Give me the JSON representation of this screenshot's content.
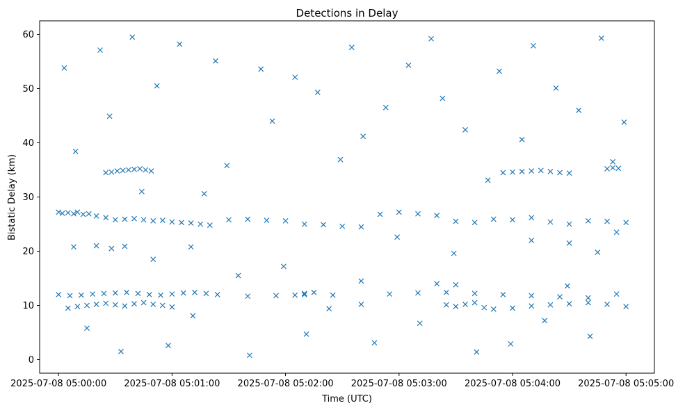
{
  "chart_data": {
    "type": "scatter",
    "title": "Detections in Delay",
    "xlabel": "Time (UTC)",
    "ylabel": "Bistatic Delay (km)",
    "x_unit": "time",
    "xlim": [
      "2025-07-08 04:59:50",
      "2025-07-08 05:05:15"
    ],
    "ylim": [
      -2.5,
      62.5
    ],
    "x_ticks": [
      "2025-07-08 05:00:00",
      "2025-07-08 05:01:00",
      "2025-07-08 05:02:00",
      "2025-07-08 05:03:00",
      "2025-07-08 05:04:00",
      "2025-07-08 05:05:00"
    ],
    "y_ticks": [
      0,
      10,
      20,
      30,
      40,
      50,
      60
    ],
    "marker": "x",
    "color": "#1f77b4",
    "grid": false,
    "series": [
      {
        "name": "",
        "x": [
          "2025-07-08 05:00:00",
          "2025-07-08 05:00:02",
          "2025-07-08 05:00:05",
          "2025-07-08 05:00:08",
          "2025-07-08 05:00:10",
          "2025-07-08 05:00:13",
          "2025-07-08 05:00:16",
          "2025-07-08 05:00:20",
          "2025-07-08 05:00:25",
          "2025-07-08 05:00:30",
          "2025-07-08 05:00:35",
          "2025-07-08 05:00:40",
          "2025-07-08 05:00:45",
          "2025-07-08 05:00:50",
          "2025-07-08 05:00:55",
          "2025-07-08 05:01:00",
          "2025-07-08 05:01:05",
          "2025-07-08 05:01:10",
          "2025-07-08 05:01:15",
          "2025-07-08 05:01:20",
          "2025-07-08 05:01:30",
          "2025-07-08 05:01:40",
          "2025-07-08 05:01:50",
          "2025-07-08 05:02:00",
          "2025-07-08 05:02:10",
          "2025-07-08 05:02:20",
          "2025-07-08 05:02:30",
          "2025-07-08 05:02:40",
          "2025-07-08 05:02:50",
          "2025-07-08 05:03:00",
          "2025-07-08 05:03:10",
          "2025-07-08 05:03:20",
          "2025-07-08 05:03:30",
          "2025-07-08 05:03:40",
          "2025-07-08 05:03:50",
          "2025-07-08 05:04:00",
          "2025-07-08 05:04:10",
          "2025-07-08 05:04:20",
          "2025-07-08 05:04:30",
          "2025-07-08 05:04:40",
          "2025-07-08 05:04:50",
          "2025-07-08 05:05:00",
          "2025-07-08 05:00:00",
          "2025-07-08 05:00:06",
          "2025-07-08 05:00:12",
          "2025-07-08 05:00:18",
          "2025-07-08 05:00:24",
          "2025-07-08 05:00:30",
          "2025-07-08 05:00:36",
          "2025-07-08 05:00:42",
          "2025-07-08 05:00:48",
          "2025-07-08 05:00:54",
          "2025-07-08 05:01:00",
          "2025-07-08 05:01:06",
          "2025-07-08 05:01:12",
          "2025-07-08 05:01:18",
          "2025-07-08 05:01:24",
          "2025-07-08 05:01:40",
          "2025-07-08 05:01:55",
          "2025-07-08 05:02:10",
          "2025-07-08 05:02:25",
          "2025-07-08 05:02:40",
          "2025-07-08 05:02:55",
          "2025-07-08 05:03:10",
          "2025-07-08 05:03:25",
          "2025-07-08 05:03:40",
          "2025-07-08 05:03:55",
          "2025-07-08 05:04:10",
          "2025-07-08 05:04:25",
          "2025-07-08 05:04:40",
          "2025-07-08 05:04:55",
          "2025-07-08 05:00:25",
          "2025-07-08 05:00:28",
          "2025-07-08 05:00:31",
          "2025-07-08 05:00:34",
          "2025-07-08 05:00:37",
          "2025-07-08 05:00:40",
          "2025-07-08 05:00:43",
          "2025-07-08 05:00:46",
          "2025-07-08 05:00:49",
          "2025-07-08 05:03:55",
          "2025-07-08 05:04:00",
          "2025-07-08 05:04:05",
          "2025-07-08 05:04:10",
          "2025-07-08 05:04:15",
          "2025-07-08 05:04:20",
          "2025-07-08 05:04:25",
          "2025-07-08 05:04:30",
          "2025-07-08 05:04:50",
          "2025-07-08 05:04:53",
          "2025-07-08 05:04:56",
          "2025-07-08 05:00:05",
          "2025-07-08 05:00:10",
          "2025-07-08 05:00:15",
          "2025-07-08 05:00:20",
          "2025-07-08 05:00:25",
          "2025-07-08 05:00:30",
          "2025-07-08 05:00:35",
          "2025-07-08 05:00:40",
          "2025-07-08 05:00:45",
          "2025-07-08 05:00:50",
          "2025-07-08 05:00:55",
          "2025-07-08 05:01:00",
          "2025-07-08 05:01:10",
          "2025-07-08 05:02:05",
          "2025-07-08 05:02:10",
          "2025-07-08 05:02:15",
          "2025-07-08 05:03:25",
          "2025-07-08 05:03:30",
          "2025-07-08 05:03:35",
          "2025-07-08 05:03:40",
          "2025-07-08 05:03:45",
          "2025-07-08 05:03:50",
          "2025-07-08 05:04:00",
          "2025-07-08 05:04:10",
          "2025-07-08 05:04:20",
          "2025-07-08 05:04:30",
          "2025-07-08 05:04:40",
          "2025-07-08 05:04:50",
          "2025-07-08 05:05:00",
          "2025-07-08 05:00:08",
          "2025-07-08 05:00:20",
          "2025-07-08 05:00:28",
          "2025-07-08 05:00:35",
          "2025-07-08 05:00:50",
          "2025-07-08 05:02:40",
          "2025-07-08 05:03:20",
          "2025-07-08 05:03:30",
          "2025-07-08 05:04:10",
          "2025-07-08 05:04:30",
          "2025-07-08 05:04:45",
          "2025-07-08 05:04:55",
          "2025-07-08 05:00:03",
          "2025-07-08 05:00:09",
          "2025-07-08 05:00:15",
          "2025-07-08 05:00:22",
          "2025-07-08 05:00:27",
          "2025-07-08 05:00:33",
          "2025-07-08 05:00:39",
          "2025-07-08 05:00:44",
          "2025-07-08 05:00:52",
          "2025-07-08 05:00:58",
          "2025-07-08 05:01:04",
          "2025-07-08 05:01:11",
          "2025-07-08 05:01:17",
          "2025-07-08 05:01:23",
          "2025-07-08 05:01:29",
          "2025-07-08 05:01:35",
          "2025-07-08 05:01:41",
          "2025-07-08 05:01:47",
          "2025-07-08 05:01:53",
          "2025-07-08 05:01:59",
          "2025-07-08 05:02:05",
          "2025-07-08 05:02:11",
          "2025-07-08 05:02:17",
          "2025-07-08 05:02:23",
          "2025-07-08 05:02:29",
          "2025-07-08 05:02:35",
          "2025-07-08 05:02:41",
          "2025-07-08 05:02:47",
          "2025-07-08 05:02:53",
          "2025-07-08 05:02:59",
          "2025-07-08 05:03:05",
          "2025-07-08 05:03:11",
          "2025-07-08 05:03:17",
          "2025-07-08 05:03:23",
          "2025-07-08 05:03:29",
          "2025-07-08 05:03:35",
          "2025-07-08 05:03:41",
          "2025-07-08 05:03:47",
          "2025-07-08 05:03:53",
          "2025-07-08 05:03:59",
          "2025-07-08 05:04:05",
          "2025-07-08 05:04:11",
          "2025-07-08 05:04:17",
          "2025-07-08 05:04:23",
          "2025-07-08 05:04:29",
          "2025-07-08 05:04:35",
          "2025-07-08 05:04:41",
          "2025-07-08 05:04:47",
          "2025-07-08 05:04:53",
          "2025-07-08 05:04:59"
        ],
        "y": [
          27.2,
          27.0,
          27.1,
          26.9,
          27.2,
          26.8,
          26.9,
          26.5,
          26.2,
          25.8,
          25.9,
          26.0,
          25.8,
          25.6,
          25.7,
          25.4,
          25.3,
          25.2,
          25.0,
          24.8,
          25.8,
          25.9,
          25.7,
          25.6,
          25.0,
          24.9,
          24.6,
          24.5,
          26.8,
          27.2,
          26.9,
          26.6,
          25.5,
          25.3,
          25.9,
          25.8,
          26.2,
          25.4,
          25.0,
          25.6,
          25.5,
          25.3,
          12.0,
          11.8,
          11.9,
          12.1,
          12.2,
          12.3,
          12.4,
          12.2,
          12.0,
          11.9,
          12.1,
          12.3,
          12.4,
          12.2,
          12.0,
          11.7,
          11.8,
          12.0,
          11.9,
          10.2,
          12.1,
          12.3,
          12.4,
          12.2,
          12.0,
          11.8,
          11.6,
          11.4,
          12.1,
          34.5,
          34.6,
          34.8,
          34.9,
          35.0,
          35.1,
          35.2,
          35.0,
          34.8,
          34.5,
          34.6,
          34.7,
          34.8,
          34.9,
          34.7,
          34.5,
          34.4,
          35.2,
          35.4,
          35.3,
          9.5,
          9.8,
          10.0,
          10.2,
          10.4,
          10.1,
          9.9,
          10.3,
          10.5,
          10.2,
          10.0,
          9.7,
          20.8,
          11.9,
          12.2,
          12.4,
          10.1,
          9.8,
          10.2,
          10.5,
          9.6,
          9.3,
          9.5,
          9.9,
          10.1,
          10.3,
          10.5,
          10.2,
          9.8,
          20.8,
          21.0,
          20.5,
          20.9,
          18.5,
          14.5,
          14.0,
          13.8,
          22.0,
          21.5,
          19.8,
          23.5,
          53.8,
          38.4,
          5.8,
          57.1,
          44.9,
          1.5,
          59.5,
          31.0,
          50.5,
          2.6,
          58.2,
          8.1,
          30.6,
          55.1,
          35.8,
          15.5,
          0.8,
          53.6,
          44.0,
          17.2,
          52.1,
          4.7,
          49.3,
          9.4,
          36.9,
          57.6,
          41.2,
          3.1,
          46.5,
          22.6,
          54.3,
          6.7,
          59.2,
          48.2,
          19.6,
          42.4,
          1.4,
          33.1,
          53.2,
          2.9,
          40.6,
          57.9,
          7.2,
          50.1,
          13.6,
          46.0,
          4.3,
          59.3,
          36.5,
          43.8
        ]
      }
    ]
  }
}
